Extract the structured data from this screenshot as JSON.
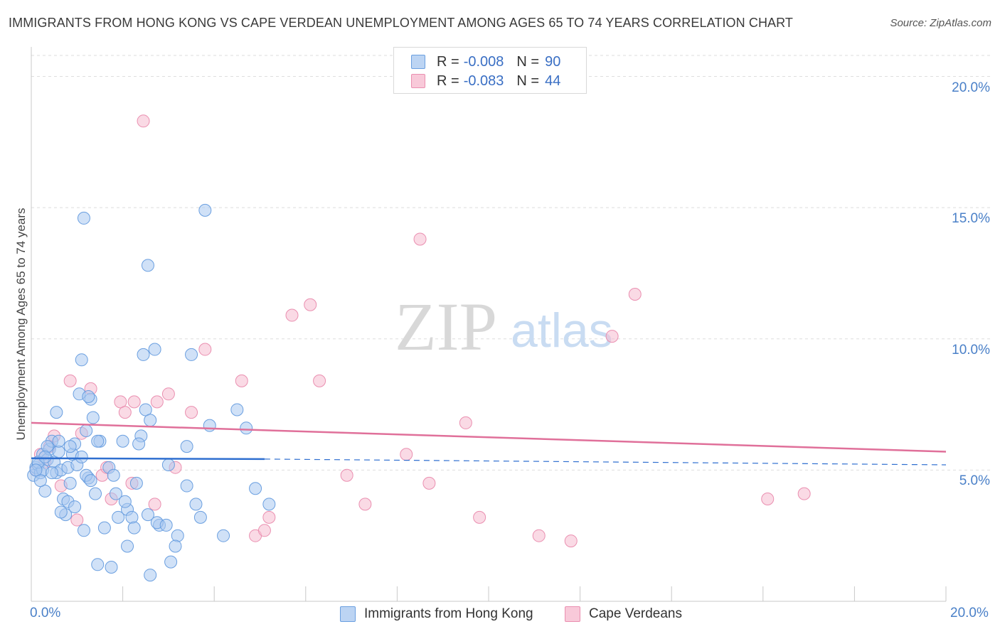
{
  "title": "IMMIGRANTS FROM HONG KONG VS CAPE VERDEAN UNEMPLOYMENT AMONG AGES 65 TO 74 YEARS CORRELATION CHART",
  "source": "Source: ZipAtlas.com",
  "watermark": {
    "zip": "ZIP",
    "atlas": "atlas"
  },
  "legend": {
    "rows": [
      {
        "r_label": "R =",
        "r_value": "-0.008",
        "n_label": "N =",
        "n_value": "90"
      },
      {
        "r_label": "R =",
        "r_value": "-0.083",
        "n_label": "N =",
        "n_value": "44"
      }
    ]
  },
  "colors": {
    "blue_fill": "#a9c8f0",
    "blue_stroke": "#6a9fe0",
    "blue_line": "#2f6fd0",
    "pink_fill": "#f6bcd0",
    "pink_stroke": "#ea8fb0",
    "pink_line": "#e0709a",
    "tick_text": "#4a80c8",
    "grid": "#dedede"
  },
  "chart_data": {
    "type": "scatter",
    "title": "IMMIGRANTS FROM HONG KONG VS CAPE VERDEAN UNEMPLOYMENT AMONG AGES 65 TO 74 YEARS CORRELATION CHART",
    "xlabel": "",
    "ylabel": "Unemployment Among Ages 65 to 74 years",
    "xlim": [
      0,
      20
    ],
    "ylim": [
      0,
      20.8
    ],
    "x_tick_labels": [
      "0.0%",
      "20.0%"
    ],
    "y_ticks": [
      5,
      10,
      15,
      20
    ],
    "y_tick_labels": [
      "5.0%",
      "10.0%",
      "15.0%",
      "20.0%"
    ],
    "grid": true,
    "legend_position": "top-center",
    "series": [
      {
        "name": "Immigrants from Hong Kong",
        "color": "#a9c8f0",
        "points": [
          [
            0.05,
            4.8
          ],
          [
            0.1,
            5.1
          ],
          [
            0.15,
            5.2
          ],
          [
            0.2,
            4.9
          ],
          [
            0.25,
            5.6
          ],
          [
            0.3,
            4.2
          ],
          [
            0.35,
            5.4
          ],
          [
            0.4,
            5.8
          ],
          [
            0.45,
            6.1
          ],
          [
            0.5,
            5.3
          ],
          [
            0.55,
            4.9
          ],
          [
            0.6,
            5.7
          ],
          [
            0.65,
            5.0
          ],
          [
            0.7,
            3.9
          ],
          [
            0.75,
            3.3
          ],
          [
            0.8,
            5.1
          ],
          [
            0.85,
            4.5
          ],
          [
            0.9,
            5.6
          ],
          [
            0.95,
            6.0
          ],
          [
            1.0,
            5.2
          ],
          [
            1.05,
            7.9
          ],
          [
            1.1,
            5.5
          ],
          [
            1.15,
            2.7
          ],
          [
            1.2,
            6.5
          ],
          [
            1.25,
            4.7
          ],
          [
            1.3,
            7.7
          ],
          [
            1.35,
            7.0
          ],
          [
            1.4,
            4.1
          ],
          [
            1.5,
            6.1
          ],
          [
            1.6,
            2.8
          ],
          [
            1.7,
            5.1
          ],
          [
            1.8,
            4.8
          ],
          [
            1.9,
            3.2
          ],
          [
            2.0,
            6.1
          ],
          [
            2.1,
            3.5
          ],
          [
            2.2,
            3.2
          ],
          [
            2.3,
            4.5
          ],
          [
            2.4,
            6.3
          ],
          [
            2.5,
            7.3
          ],
          [
            2.6,
            6.9
          ],
          [
            2.7,
            9.6
          ],
          [
            2.8,
            2.9
          ],
          [
            3.0,
            5.2
          ],
          [
            3.2,
            2.5
          ],
          [
            3.4,
            4.4
          ],
          [
            3.6,
            3.7
          ],
          [
            1.15,
            14.6
          ],
          [
            3.8,
            14.9
          ],
          [
            2.55,
            12.8
          ],
          [
            0.55,
            7.2
          ],
          [
            1.1,
            9.2
          ],
          [
            2.45,
            9.4
          ],
          [
            3.5,
            9.4
          ],
          [
            1.25,
            7.8
          ],
          [
            0.8,
            3.8
          ],
          [
            1.45,
            1.4
          ],
          [
            1.75,
            1.3
          ],
          [
            2.1,
            2.1
          ],
          [
            2.6,
            1.0
          ],
          [
            3.4,
            5.9
          ],
          [
            3.9,
            6.7
          ],
          [
            4.5,
            7.3
          ],
          [
            4.7,
            6.6
          ],
          [
            4.9,
            4.3
          ],
          [
            5.2,
            3.7
          ],
          [
            3.7,
            3.2
          ],
          [
            4.2,
            2.5
          ],
          [
            0.25,
            5.0
          ],
          [
            0.35,
            5.9
          ],
          [
            0.45,
            4.9
          ],
          [
            0.65,
            3.4
          ],
          [
            0.85,
            5.9
          ],
          [
            0.95,
            3.6
          ],
          [
            1.2,
            4.8
          ],
          [
            1.3,
            4.6
          ],
          [
            1.45,
            6.1
          ],
          [
            1.85,
            4.1
          ],
          [
            2.05,
            3.8
          ],
          [
            2.25,
            2.8
          ],
          [
            2.35,
            6.0
          ],
          [
            2.55,
            3.3
          ],
          [
            2.75,
            3.0
          ],
          [
            2.95,
            2.9
          ],
          [
            3.05,
            1.5
          ],
          [
            3.15,
            2.1
          ],
          [
            0.15,
            5.3
          ],
          [
            0.3,
            5.5
          ],
          [
            0.2,
            4.6
          ],
          [
            0.1,
            5.0
          ],
          [
            0.6,
            6.1
          ]
        ]
      },
      {
        "name": "Cape Verdeans",
        "color": "#f6bcd0",
        "points": [
          [
            0.1,
            5.0
          ],
          [
            0.2,
            5.6
          ],
          [
            0.3,
            5.3
          ],
          [
            0.4,
            5.9
          ],
          [
            0.5,
            6.3
          ],
          [
            0.65,
            4.4
          ],
          [
            0.85,
            8.4
          ],
          [
            1.0,
            3.1
          ],
          [
            1.1,
            6.4
          ],
          [
            1.3,
            8.1
          ],
          [
            1.55,
            4.8
          ],
          [
            1.65,
            5.1
          ],
          [
            1.75,
            3.9
          ],
          [
            1.95,
            7.6
          ],
          [
            2.05,
            7.2
          ],
          [
            2.2,
            4.5
          ],
          [
            2.25,
            7.6
          ],
          [
            2.45,
            18.3
          ],
          [
            2.7,
            3.7
          ],
          [
            2.75,
            7.6
          ],
          [
            3.0,
            7.9
          ],
          [
            3.15,
            5.1
          ],
          [
            3.5,
            7.2
          ],
          [
            3.8,
            9.6
          ],
          [
            4.6,
            8.4
          ],
          [
            4.9,
            2.5
          ],
          [
            5.1,
            2.7
          ],
          [
            5.2,
            3.2
          ],
          [
            5.7,
            10.9
          ],
          [
            6.1,
            11.3
          ],
          [
            6.3,
            8.4
          ],
          [
            6.9,
            4.8
          ],
          [
            7.3,
            3.7
          ],
          [
            8.2,
            5.6
          ],
          [
            8.5,
            13.8
          ],
          [
            8.7,
            4.5
          ],
          [
            9.5,
            6.8
          ],
          [
            9.8,
            3.2
          ],
          [
            11.1,
            2.5
          ],
          [
            11.8,
            2.3
          ],
          [
            12.7,
            10.1
          ],
          [
            13.2,
            11.7
          ],
          [
            16.1,
            3.9
          ],
          [
            16.9,
            4.1
          ]
        ]
      }
    ],
    "trend_lines": [
      {
        "series": "Immigrants from Hong Kong",
        "x_solid": [
          0,
          5.1
        ],
        "y_solid": [
          5.45,
          5.42
        ],
        "x_dashed": [
          5.1,
          20
        ],
        "y_dashed": [
          5.42,
          5.2
        ]
      },
      {
        "series": "Cape Verdeans",
        "x": [
          0,
          20
        ],
        "y": [
          6.8,
          5.7
        ]
      }
    ]
  }
}
